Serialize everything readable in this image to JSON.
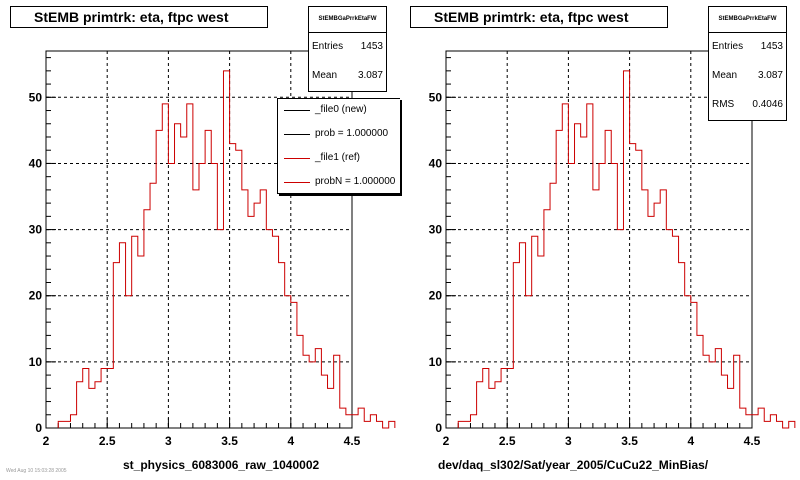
{
  "panels": [
    {
      "title": "StEMB primtrk: eta, ftpc west",
      "stats_header": "StEMBGaPrrkEtaFW",
      "stats": [
        {
          "key": "Entries",
          "value": "1453"
        },
        {
          "key": "Mean",
          "value": "3.087"
        }
      ],
      "legend": [
        {
          "label": "_file0 (new)",
          "color": "#000000"
        },
        {
          "label": "prob = 1.000000",
          "color": "#000000"
        },
        {
          "label": "_file1 (ref)",
          "color": "#cc0000"
        },
        {
          "label": "probN = 1.000000",
          "color": "#cc0000"
        }
      ],
      "xtitle": "st_physics_6083006_raw_1040002"
    },
    {
      "title": "StEMB primtrk: eta, ftpc west",
      "stats_header": "StEMBGaPrrkEtaFW",
      "stats": [
        {
          "key": "Entries",
          "value": "1453"
        },
        {
          "key": "Mean",
          "value": "3.087"
        },
        {
          "key": "RMS",
          "value": "0.4046"
        }
      ],
      "xtitle": "dev/daq_sl302/Sat/year_2005/CuCu22_MinBias/"
    }
  ],
  "footer_note": "Wed Aug 10 15:03:28 2005",
  "colors": {
    "histogram_line": "#cc0000",
    "grid": "#000000"
  },
  "chart_data": [
    {
      "type": "histogram",
      "title": "StEMB primtrk: eta, ftpc west",
      "xlabel": "st_physics_6083006_raw_1040002",
      "ylabel": "",
      "xlim": [
        2,
        4.5
      ],
      "ylim": [
        0,
        57
      ],
      "xticks": [
        "2",
        "2.5",
        "3",
        "3.5",
        "4",
        "4.5"
      ],
      "yticks": [
        "0",
        "10",
        "20",
        "30",
        "40",
        "50"
      ],
      "grid": true,
      "bin_width": 0.05,
      "bin_start": 2.1,
      "values": [
        1,
        1,
        2,
        7,
        9,
        6,
        7,
        9,
        9,
        25,
        28,
        20,
        29,
        26,
        33,
        37,
        45,
        49,
        40,
        46,
        44,
        49,
        36,
        40,
        45,
        40,
        30,
        54,
        43,
        42,
        36,
        32,
        34,
        36,
        30,
        29,
        25,
        20,
        19,
        14,
        11,
        10,
        12,
        8,
        6,
        11,
        3,
        2,
        2,
        3,
        1,
        2,
        1,
        0,
        1
      ],
      "series": [
        {
          "name": "_file0 (new)",
          "values": [
            1,
            1,
            2,
            7,
            9,
            6,
            7,
            9,
            9,
            25,
            28,
            20,
            29,
            26,
            33,
            37,
            45,
            49,
            40,
            46,
            44,
            49,
            36,
            40,
            45,
            40,
            30,
            54,
            43,
            42,
            36,
            32,
            34,
            36,
            30,
            29,
            25,
            20,
            19,
            14,
            11,
            10,
            12,
            8,
            6,
            11,
            3,
            2,
            2,
            3,
            1,
            2,
            1,
            0,
            1
          ]
        },
        {
          "name": "_file1 (ref)",
          "values": [
            1,
            1,
            2,
            7,
            9,
            6,
            7,
            9,
            9,
            25,
            28,
            20,
            29,
            26,
            33,
            37,
            45,
            49,
            40,
            46,
            44,
            49,
            36,
            40,
            45,
            40,
            30,
            54,
            43,
            42,
            36,
            32,
            34,
            36,
            30,
            29,
            25,
            20,
            19,
            14,
            11,
            10,
            12,
            8,
            6,
            11,
            3,
            2,
            2,
            3,
            1,
            2,
            1,
            0,
            1
          ]
        }
      ]
    },
    {
      "type": "histogram",
      "title": "StEMB primtrk: eta, ftpc west",
      "xlabel": "dev/daq_sl302/Sat/year_2005/CuCu22_MinBias/",
      "ylabel": "",
      "xlim": [
        2,
        4.5
      ],
      "ylim": [
        0,
        57
      ],
      "xticks": [
        "2",
        "2.5",
        "3",
        "3.5",
        "4",
        "4.5"
      ],
      "yticks": [
        "0",
        "10",
        "20",
        "30",
        "40",
        "50"
      ],
      "grid": true,
      "bin_width": 0.05,
      "bin_start": 2.1,
      "values": [
        1,
        1,
        2,
        7,
        9,
        6,
        7,
        9,
        9,
        25,
        28,
        20,
        29,
        26,
        33,
        37,
        45,
        49,
        40,
        46,
        44,
        49,
        36,
        40,
        45,
        40,
        30,
        54,
        43,
        42,
        36,
        32,
        34,
        36,
        30,
        29,
        25,
        20,
        19,
        14,
        11,
        10,
        12,
        8,
        6,
        11,
        3,
        2,
        2,
        3,
        1,
        2,
        1,
        0,
        1
      ]
    }
  ]
}
